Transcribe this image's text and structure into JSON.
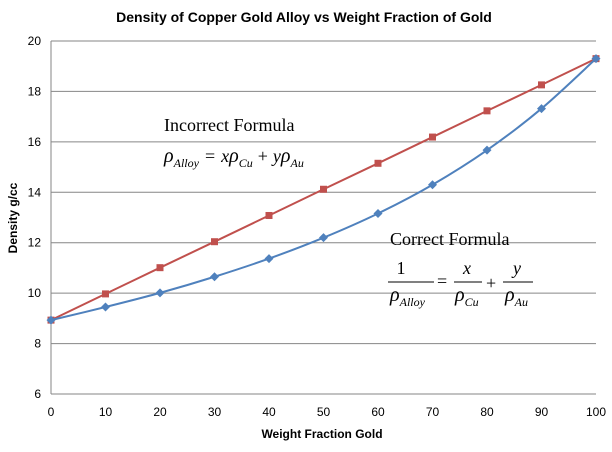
{
  "chart_data": {
    "type": "line",
    "title": "Density of Copper Gold Alloy vs Weight Fraction of Gold",
    "xlabel": "Weight Fraction Gold",
    "ylabel": "Density g/cc",
    "x": [
      0,
      10,
      20,
      30,
      40,
      50,
      60,
      70,
      80,
      90,
      100
    ],
    "xlim": [
      0,
      100
    ],
    "ylim": [
      6,
      20
    ],
    "xticks": [
      0,
      10,
      20,
      30,
      40,
      50,
      60,
      70,
      80,
      90,
      100
    ],
    "yticks": [
      6,
      8,
      10,
      12,
      14,
      16,
      18,
      20
    ],
    "grid": "horizontal",
    "series": [
      {
        "values": [
          8.93,
          9.97,
          11.01,
          12.04,
          13.08,
          14.12,
          15.15,
          16.19,
          17.23,
          18.26,
          19.3
        ],
        "color": "#C0504D",
        "marker": "square"
      },
      {
        "values": [
          8.93,
          9.45,
          10.01,
          10.65,
          11.37,
          12.2,
          13.16,
          14.3,
          15.67,
          17.32,
          19.3
        ],
        "color": "#4F81BD",
        "marker": "diamond"
      }
    ],
    "annotations": [
      {
        "label": "Incorrect Formula",
        "formula": "ρAlloy = xρCu + yρAu"
      },
      {
        "label": "Correct Formula",
        "formula": "1/ρAlloy = x/ρCu + y/ρAu"
      }
    ]
  },
  "formula_symbols": {
    "rho": "ρ",
    "x": "x",
    "y": "y",
    "one": "1",
    "eq": "=",
    "plus": "+",
    "alloy": "Alloy",
    "cu": "Cu",
    "au": "Au"
  }
}
